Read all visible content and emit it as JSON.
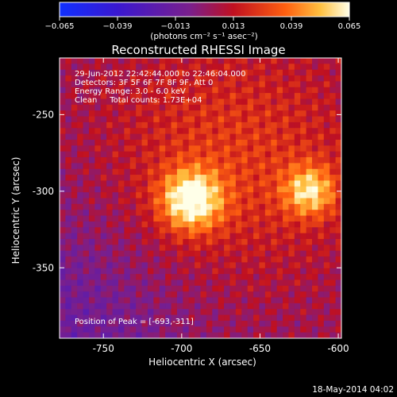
{
  "chart_data": {
    "type": "heatmap",
    "title": "Reconstructed RHESSI Image",
    "xlabel": "Heliocentric X (arcsec)",
    "ylabel": "Heliocentric Y (arcsec)",
    "xlim": [
      -778,
      -598
    ],
    "ylim": [
      -396,
      -213
    ],
    "x_ticks": [
      "-750",
      "-700",
      "-650",
      "-600"
    ],
    "x_tick_values": [
      -750,
      -700,
      -650,
      -600
    ],
    "y_ticks": [
      "-250",
      "-300",
      "-350"
    ],
    "y_tick_values": [
      -250,
      -300,
      -350
    ],
    "colorbar": {
      "range": [
        -0.065,
        0.065
      ],
      "ticks": [
        "−0.065",
        "−0.039",
        "−0.013",
        "0.013",
        "0.039",
        "0.065"
      ],
      "tick_values": [
        -0.065,
        -0.039,
        -0.013,
        0.013,
        0.039,
        0.065
      ],
      "unit_label": "(photons cm⁻² s⁻¹ asec⁻²)"
    },
    "annotations": [
      "29-Jun-2012 22:42:44.000 to 22:46:04.000",
      "Detectors: 3F 5F 6F 7F 8F 9F, Att 0",
      "Energy Range: 3.0 - 6.0 keV",
      "Clean     Total counts: 1.73E+04"
    ],
    "peak_label": "Position of Peak = [-693,-311]",
    "peak": {
      "x": -693,
      "y": -311,
      "value": 0.065
    },
    "sources": [
      {
        "x": -694,
        "y": -306,
        "value": 0.065
      },
      {
        "x": -618,
        "y": -300,
        "value": 0.05
      }
    ],
    "grid": false
  },
  "footer": {
    "date": "18-May-2014 04:02"
  }
}
